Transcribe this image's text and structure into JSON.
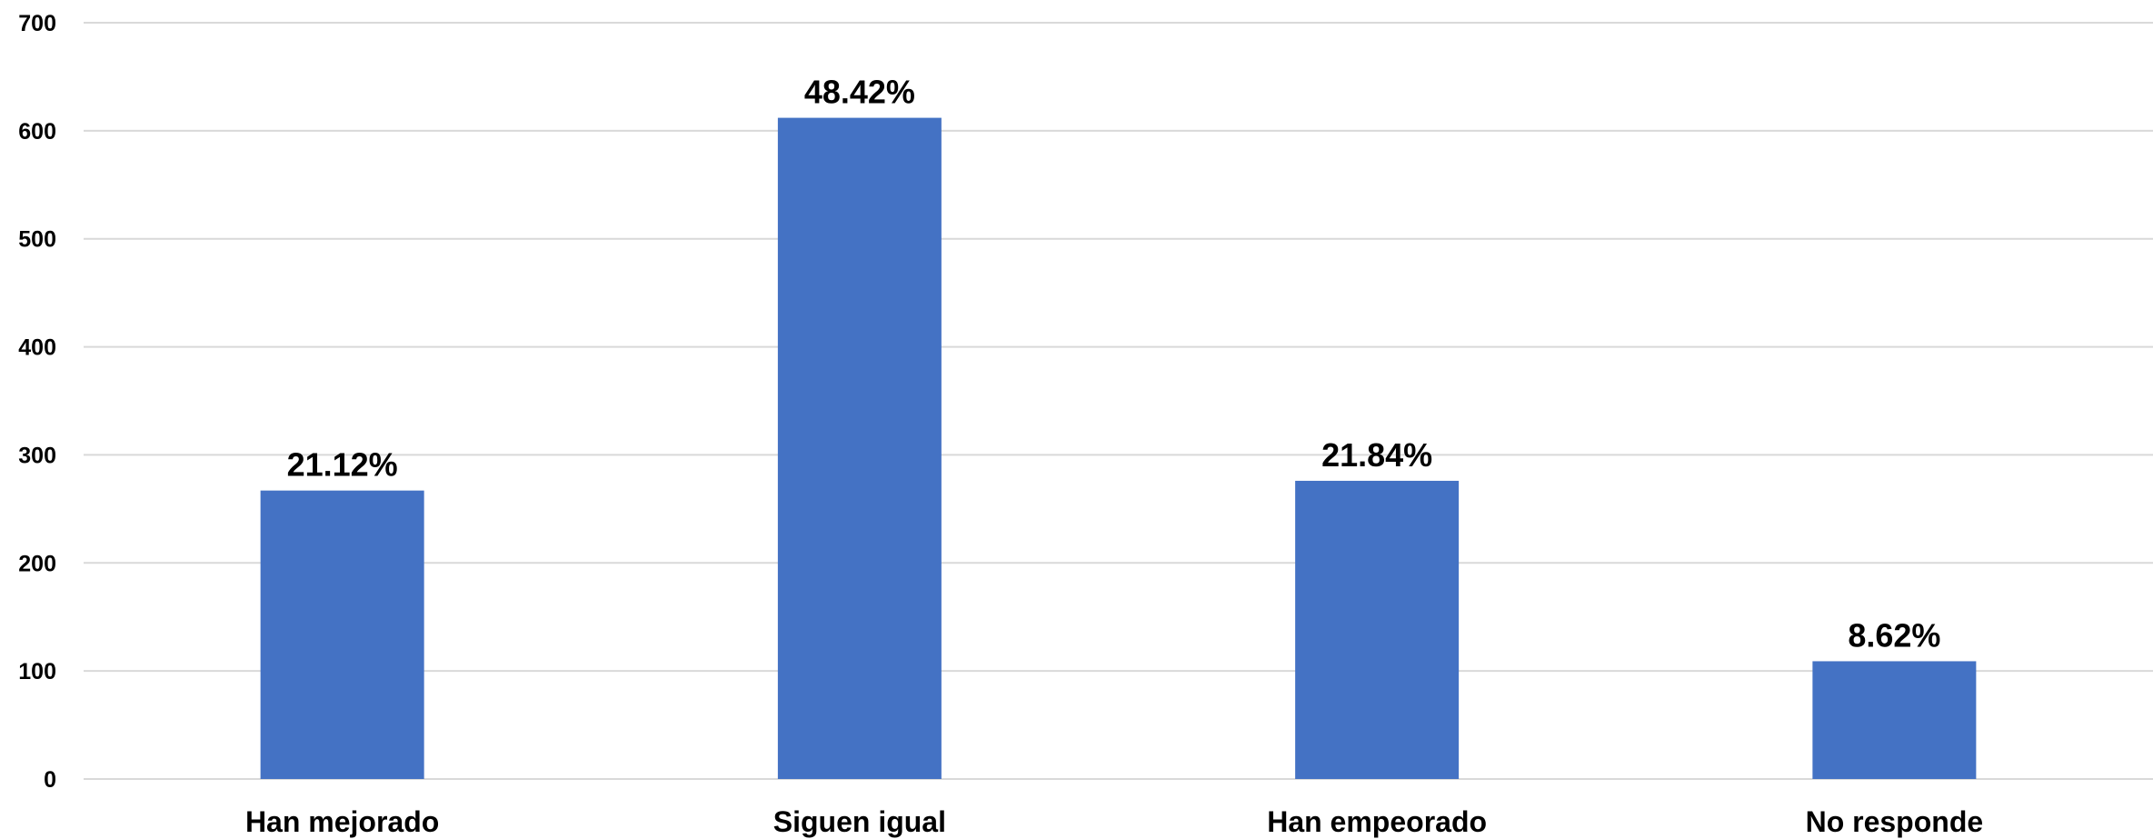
{
  "chart_data": {
    "type": "bar",
    "categories": [
      "Han mejorado",
      "Siguen igual",
      "Han empeorado",
      "No responde"
    ],
    "values": [
      267,
      612,
      276,
      109
    ],
    "data_labels": [
      "21.12%",
      "48.42%",
      "21.84%",
      "8.62%"
    ],
    "ylim": [
      0,
      700
    ],
    "yticks": [
      0,
      100,
      200,
      300,
      400,
      500,
      600,
      700
    ],
    "grid": true,
    "legend": "none",
    "title": "",
    "xlabel": "",
    "ylabel": "",
    "colors": {
      "bar": "#4472C4",
      "grid": "#D9D9D9",
      "text": "#000000"
    }
  }
}
